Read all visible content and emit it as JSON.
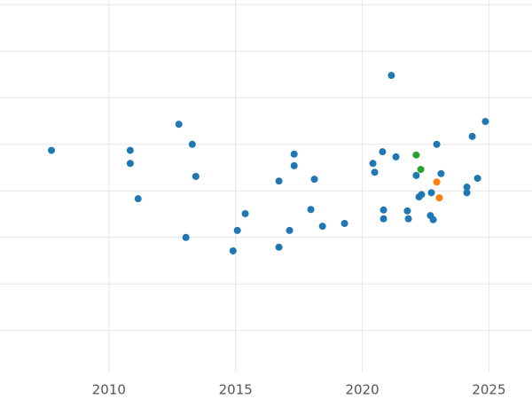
{
  "chart_data": {
    "type": "scatter",
    "xlim": [
      2005.7,
      2026.7
    ],
    "xticks": [
      2010,
      2015,
      2020,
      2025
    ],
    "ylim": [
      -0.9,
      7.1
    ],
    "yticks": [
      0,
      1,
      2,
      3,
      4,
      5,
      6,
      7
    ],
    "grid": true,
    "series": [
      {
        "color": "#1f77b4",
        "x": [
          2007.73,
          2010.84,
          2010.84,
          2011.15,
          2012.76,
          2013.29,
          2013.43,
          2013.04,
          2014.9,
          2015.07,
          2015.38,
          2016.71,
          2016.71,
          2017.13,
          2017.31,
          2017.31,
          2017.97,
          2018.11,
          2018.43,
          2019.3,
          2020.42,
          2020.49,
          2020.8,
          2020.84,
          2020.84,
          2021.15,
          2021.33,
          2021.78,
          2021.82,
          2022.13,
          2022.24,
          2022.34,
          2022.73,
          2022.69,
          2022.8,
          2022.94,
          2023.11,
          2024.13,
          2024.13,
          2024.34,
          2024.55,
          2024.86
        ],
        "values": [
          3.87,
          3.87,
          3.59,
          2.83,
          4.43,
          4.0,
          3.31,
          2.0,
          1.71,
          2.15,
          2.51,
          3.21,
          1.79,
          2.15,
          3.79,
          3.54,
          2.6,
          3.25,
          2.24,
          2.3,
          3.59,
          3.4,
          3.84,
          2.59,
          2.4,
          5.48,
          3.73,
          2.57,
          2.4,
          3.33,
          2.87,
          2.92,
          2.96,
          2.47,
          2.38,
          4.0,
          3.37,
          3.08,
          2.96,
          4.17,
          3.27,
          4.49
        ]
      },
      {
        "color": "#2ca02c",
        "x": [
          2022.13,
          2022.31
        ],
        "values": [
          3.77,
          3.46
        ]
      },
      {
        "color": "#ff7f0e",
        "x": [
          2022.94,
          2023.04
        ],
        "values": [
          3.19,
          2.85
        ]
      }
    ]
  }
}
